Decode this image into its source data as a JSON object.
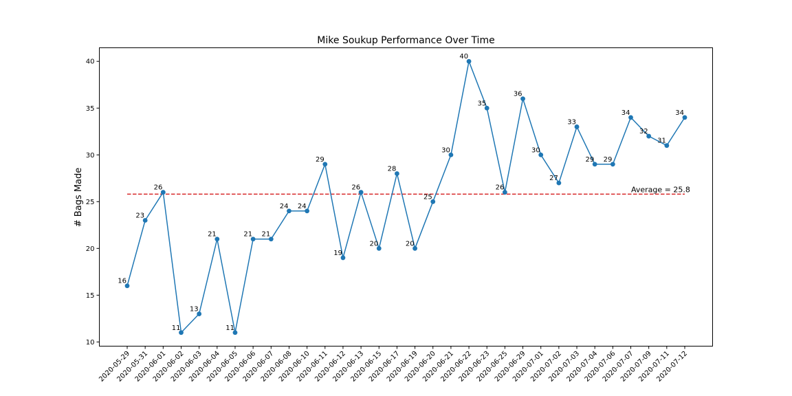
{
  "chart_data": {
    "type": "line",
    "title": "Mike Soukup Performance Over Time",
    "xlabel": "",
    "ylabel": "# Bags Made",
    "ylim": [
      9.55,
      41.45
    ],
    "yticks": [
      10,
      15,
      20,
      25,
      30,
      35,
      40
    ],
    "grid": false,
    "categories": [
      "2020-05-29",
      "2020-05-31",
      "2020-06-01",
      "2020-06-02",
      "2020-06-03",
      "2020-06-04",
      "2020-06-05",
      "2020-06-06",
      "2020-06-07",
      "2020-06-08",
      "2020-06-10",
      "2020-06-11",
      "2020-06-12",
      "2020-06-13",
      "2020-06-15",
      "2020-06-17",
      "2020-06-19",
      "2020-06-20",
      "2020-06-21",
      "2020-06-22",
      "2020-06-23",
      "2020-06-25",
      "2020-06-29",
      "2020-07-01",
      "2020-07-02",
      "2020-07-03",
      "2020-07-04",
      "2020-07-06",
      "2020-07-07",
      "2020-07-09",
      "2020-07-11",
      "2020-07-12"
    ],
    "series": [
      {
        "values": [
          16,
          23,
          26,
          11,
          13,
          21,
          11,
          21,
          21,
          24,
          24,
          29,
          19,
          26,
          20,
          28,
          20,
          25,
          30,
          40,
          35,
          26,
          36,
          30,
          27,
          33,
          29,
          29,
          34,
          32,
          31,
          34
        ],
        "color": "#1f77b4"
      }
    ],
    "average": {
      "value": 25.8,
      "label": "Average = 25.8",
      "color": "#d62728"
    }
  }
}
